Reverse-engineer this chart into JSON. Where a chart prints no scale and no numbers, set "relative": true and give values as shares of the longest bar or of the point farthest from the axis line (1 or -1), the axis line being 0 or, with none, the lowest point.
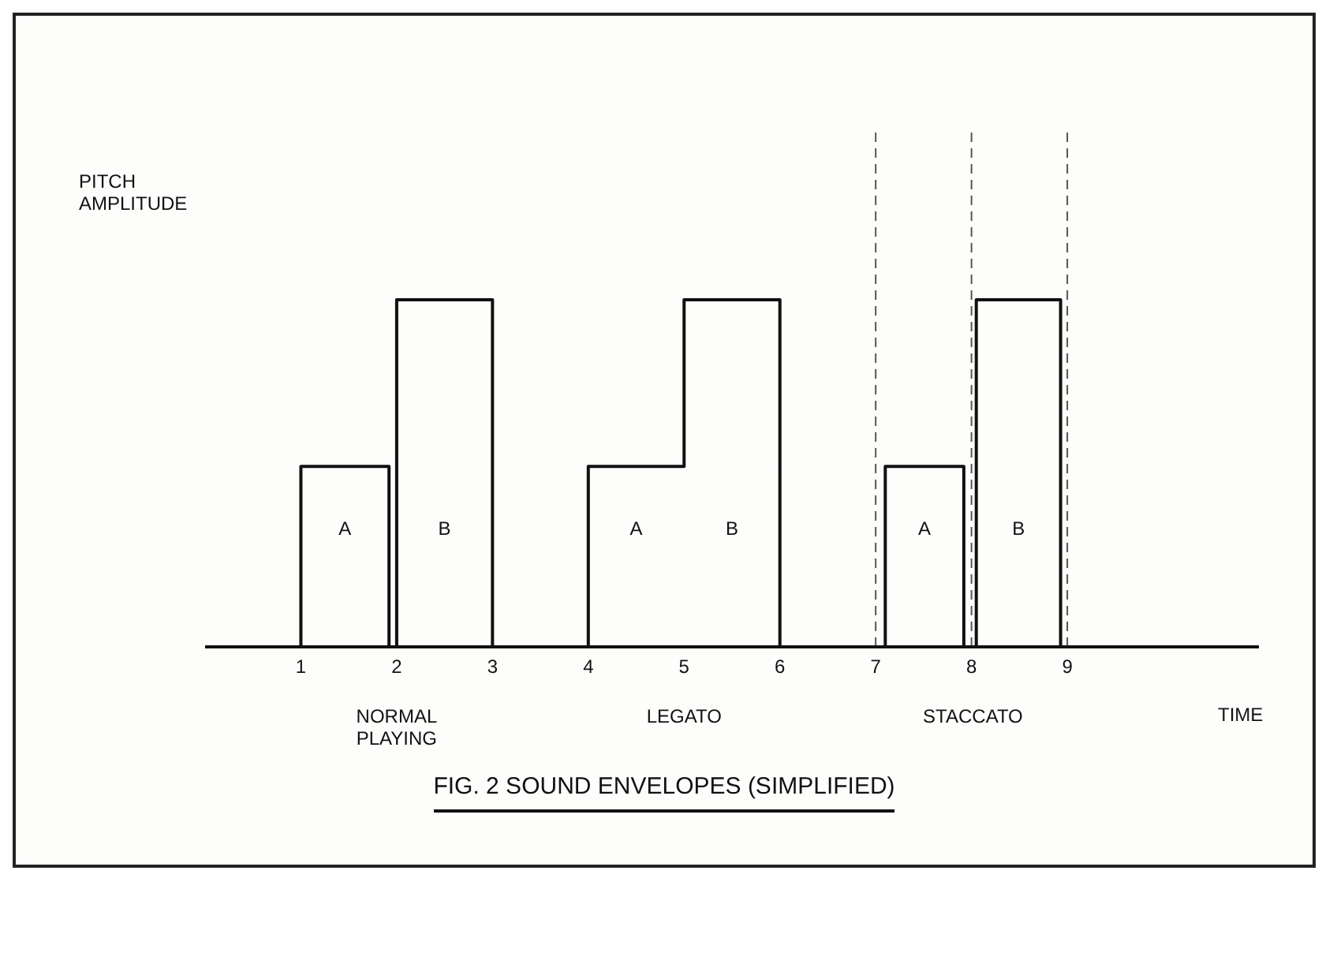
{
  "chart_data": {
    "type": "line",
    "relative": true,
    "title": "FIG. 2 SOUND ENVELOPES (SIMPLIFIED)",
    "xlabel": "TIME",
    "ylabel": "PITCH AMPLITUDE",
    "xlim": [
      0,
      11
    ],
    "xticks": [
      1,
      2,
      3,
      4,
      5,
      6,
      7,
      8,
      9
    ],
    "marker": "none",
    "line_style": "solid",
    "series": [
      {
        "color": "#111111",
        "x": [
          1,
          1,
          1.92,
          1.92,
          2,
          2,
          3,
          3
        ],
        "values": [
          0,
          0.52,
          0.52,
          0,
          0,
          1,
          1,
          0
        ]
      },
      {
        "color": "#111111",
        "x": [
          4,
          4,
          5,
          5,
          6,
          6
        ],
        "values": [
          0,
          0.52,
          0.52,
          1,
          1,
          0
        ]
      },
      {
        "color": "#111111",
        "x": [
          7.1,
          7.1,
          7.92,
          7.92,
          8.05,
          8.05,
          8.93,
          8.93
        ],
        "values": [
          0,
          0.52,
          0.52,
          0,
          0,
          1,
          1,
          0
        ]
      }
    ],
    "ref_lines": [
      {
        "axis": "x",
        "value": 7,
        "line_style": "dashed",
        "color": "#555555"
      },
      {
        "axis": "x",
        "value": 8,
        "line_style": "dashed",
        "color": "#555555"
      },
      {
        "axis": "x",
        "value": 9,
        "line_style": "dashed",
        "color": "#555555"
      }
    ],
    "annotations": [
      "A",
      "B",
      "A",
      "B",
      "A",
      "B",
      "NORMAL PLAYING",
      "LEGATO",
      "STACCATO"
    ]
  }
}
